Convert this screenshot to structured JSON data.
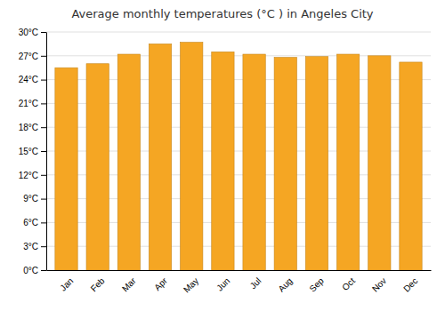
{
  "chart_data": {
    "type": "bar",
    "title": "Average monthly temperatures (°C ) in Angeles City",
    "categories": [
      "Jan",
      "Feb",
      "Mar",
      "Apr",
      "May",
      "Jun",
      "Jul",
      "Aug",
      "Sep",
      "Oct",
      "Nov",
      "Dec"
    ],
    "values": [
      25.5,
      26.0,
      27.2,
      28.5,
      28.7,
      27.5,
      27.2,
      26.8,
      26.9,
      27.2,
      27.0,
      26.2
    ],
    "color": "#F5A623",
    "ylim": [
      0,
      30
    ],
    "yticks": [
      {
        "value": 0,
        "label": "0°C"
      },
      {
        "value": 3,
        "label": "3°C"
      },
      {
        "value": 6,
        "label": "6°C"
      },
      {
        "value": 9,
        "label": "9°C"
      },
      {
        "value": 12,
        "label": "12°C"
      },
      {
        "value": 15,
        "label": "15°C"
      },
      {
        "value": 18,
        "label": "18°C"
      },
      {
        "value": 21,
        "label": "21°C"
      },
      {
        "value": 24,
        "label": "24°C"
      },
      {
        "value": 27,
        "label": "27°C"
      },
      {
        "value": 30,
        "label": "30°C"
      }
    ],
    "grid": true
  }
}
